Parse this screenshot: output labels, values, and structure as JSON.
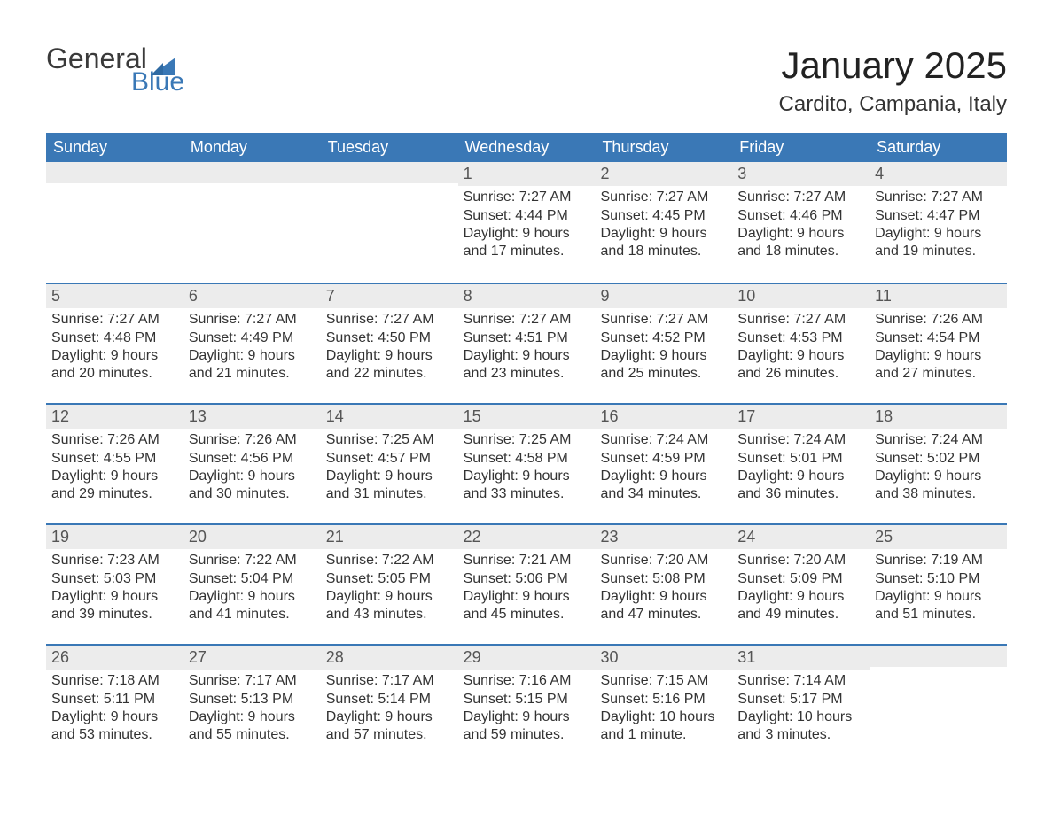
{
  "brand": {
    "word1": "General",
    "word2": "Blue"
  },
  "colors": {
    "brand_blue": "#3a78b6",
    "header_bg": "#3a78b6",
    "header_fg": "#ffffff",
    "daynum_bg": "#ececec",
    "text": "#333333",
    "page_bg": "#ffffff"
  },
  "title": "January 2025",
  "location": "Cardito, Campania, Italy",
  "days_of_week": [
    "Sunday",
    "Monday",
    "Tuesday",
    "Wednesday",
    "Thursday",
    "Friday",
    "Saturday"
  ],
  "weeks": [
    [
      {
        "date": "",
        "sunrise": "",
        "sunset": "",
        "daylight": ""
      },
      {
        "date": "",
        "sunrise": "",
        "sunset": "",
        "daylight": ""
      },
      {
        "date": "",
        "sunrise": "",
        "sunset": "",
        "daylight": ""
      },
      {
        "date": "1",
        "sunrise": "Sunrise: 7:27 AM",
        "sunset": "Sunset: 4:44 PM",
        "daylight": "Daylight: 9 hours and 17 minutes."
      },
      {
        "date": "2",
        "sunrise": "Sunrise: 7:27 AM",
        "sunset": "Sunset: 4:45 PM",
        "daylight": "Daylight: 9 hours and 18 minutes."
      },
      {
        "date": "3",
        "sunrise": "Sunrise: 7:27 AM",
        "sunset": "Sunset: 4:46 PM",
        "daylight": "Daylight: 9 hours and 18 minutes."
      },
      {
        "date": "4",
        "sunrise": "Sunrise: 7:27 AM",
        "sunset": "Sunset: 4:47 PM",
        "daylight": "Daylight: 9 hours and 19 minutes."
      }
    ],
    [
      {
        "date": "5",
        "sunrise": "Sunrise: 7:27 AM",
        "sunset": "Sunset: 4:48 PM",
        "daylight": "Daylight: 9 hours and 20 minutes."
      },
      {
        "date": "6",
        "sunrise": "Sunrise: 7:27 AM",
        "sunset": "Sunset: 4:49 PM",
        "daylight": "Daylight: 9 hours and 21 minutes."
      },
      {
        "date": "7",
        "sunrise": "Sunrise: 7:27 AM",
        "sunset": "Sunset: 4:50 PM",
        "daylight": "Daylight: 9 hours and 22 minutes."
      },
      {
        "date": "8",
        "sunrise": "Sunrise: 7:27 AM",
        "sunset": "Sunset: 4:51 PM",
        "daylight": "Daylight: 9 hours and 23 minutes."
      },
      {
        "date": "9",
        "sunrise": "Sunrise: 7:27 AM",
        "sunset": "Sunset: 4:52 PM",
        "daylight": "Daylight: 9 hours and 25 minutes."
      },
      {
        "date": "10",
        "sunrise": "Sunrise: 7:27 AM",
        "sunset": "Sunset: 4:53 PM",
        "daylight": "Daylight: 9 hours and 26 minutes."
      },
      {
        "date": "11",
        "sunrise": "Sunrise: 7:26 AM",
        "sunset": "Sunset: 4:54 PM",
        "daylight": "Daylight: 9 hours and 27 minutes."
      }
    ],
    [
      {
        "date": "12",
        "sunrise": "Sunrise: 7:26 AM",
        "sunset": "Sunset: 4:55 PM",
        "daylight": "Daylight: 9 hours and 29 minutes."
      },
      {
        "date": "13",
        "sunrise": "Sunrise: 7:26 AM",
        "sunset": "Sunset: 4:56 PM",
        "daylight": "Daylight: 9 hours and 30 minutes."
      },
      {
        "date": "14",
        "sunrise": "Sunrise: 7:25 AM",
        "sunset": "Sunset: 4:57 PM",
        "daylight": "Daylight: 9 hours and 31 minutes."
      },
      {
        "date": "15",
        "sunrise": "Sunrise: 7:25 AM",
        "sunset": "Sunset: 4:58 PM",
        "daylight": "Daylight: 9 hours and 33 minutes."
      },
      {
        "date": "16",
        "sunrise": "Sunrise: 7:24 AM",
        "sunset": "Sunset: 4:59 PM",
        "daylight": "Daylight: 9 hours and 34 minutes."
      },
      {
        "date": "17",
        "sunrise": "Sunrise: 7:24 AM",
        "sunset": "Sunset: 5:01 PM",
        "daylight": "Daylight: 9 hours and 36 minutes."
      },
      {
        "date": "18",
        "sunrise": "Sunrise: 7:24 AM",
        "sunset": "Sunset: 5:02 PM",
        "daylight": "Daylight: 9 hours and 38 minutes."
      }
    ],
    [
      {
        "date": "19",
        "sunrise": "Sunrise: 7:23 AM",
        "sunset": "Sunset: 5:03 PM",
        "daylight": "Daylight: 9 hours and 39 minutes."
      },
      {
        "date": "20",
        "sunrise": "Sunrise: 7:22 AM",
        "sunset": "Sunset: 5:04 PM",
        "daylight": "Daylight: 9 hours and 41 minutes."
      },
      {
        "date": "21",
        "sunrise": "Sunrise: 7:22 AM",
        "sunset": "Sunset: 5:05 PM",
        "daylight": "Daylight: 9 hours and 43 minutes."
      },
      {
        "date": "22",
        "sunrise": "Sunrise: 7:21 AM",
        "sunset": "Sunset: 5:06 PM",
        "daylight": "Daylight: 9 hours and 45 minutes."
      },
      {
        "date": "23",
        "sunrise": "Sunrise: 7:20 AM",
        "sunset": "Sunset: 5:08 PM",
        "daylight": "Daylight: 9 hours and 47 minutes."
      },
      {
        "date": "24",
        "sunrise": "Sunrise: 7:20 AM",
        "sunset": "Sunset: 5:09 PM",
        "daylight": "Daylight: 9 hours and 49 minutes."
      },
      {
        "date": "25",
        "sunrise": "Sunrise: 7:19 AM",
        "sunset": "Sunset: 5:10 PM",
        "daylight": "Daylight: 9 hours and 51 minutes."
      }
    ],
    [
      {
        "date": "26",
        "sunrise": "Sunrise: 7:18 AM",
        "sunset": "Sunset: 5:11 PM",
        "daylight": "Daylight: 9 hours and 53 minutes."
      },
      {
        "date": "27",
        "sunrise": "Sunrise: 7:17 AM",
        "sunset": "Sunset: 5:13 PM",
        "daylight": "Daylight: 9 hours and 55 minutes."
      },
      {
        "date": "28",
        "sunrise": "Sunrise: 7:17 AM",
        "sunset": "Sunset: 5:14 PM",
        "daylight": "Daylight: 9 hours and 57 minutes."
      },
      {
        "date": "29",
        "sunrise": "Sunrise: 7:16 AM",
        "sunset": "Sunset: 5:15 PM",
        "daylight": "Daylight: 9 hours and 59 minutes."
      },
      {
        "date": "30",
        "sunrise": "Sunrise: 7:15 AM",
        "sunset": "Sunset: 5:16 PM",
        "daylight": "Daylight: 10 hours and 1 minute."
      },
      {
        "date": "31",
        "sunrise": "Sunrise: 7:14 AM",
        "sunset": "Sunset: 5:17 PM",
        "daylight": "Daylight: 10 hours and 3 minutes."
      },
      {
        "date": "",
        "sunrise": "",
        "sunset": "",
        "daylight": ""
      }
    ]
  ]
}
